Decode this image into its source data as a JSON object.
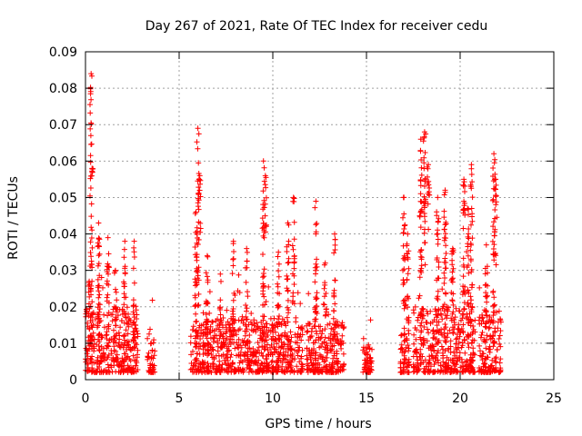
{
  "chart_data": {
    "type": "scatter",
    "title": "Day 267 of 2021, Rate Of TEC Index for receiver cedu",
    "xlabel": "GPS time / hours",
    "ylabel": "ROTI / TECUs",
    "xlim": [
      0,
      25
    ],
    "ylim": [
      0,
      0.09
    ],
    "x_ticks": [
      0,
      5,
      10,
      15,
      20,
      25
    ],
    "x_tick_labels": [
      "0",
      "5",
      "10",
      "15",
      "20",
      "25"
    ],
    "y_ticks": [
      0,
      0.01,
      0.02,
      0.03,
      0.04,
      0.05,
      0.06,
      0.07,
      0.08,
      0.09
    ],
    "y_tick_labels": [
      "0",
      "0.01",
      "0.02",
      "0.03",
      "0.04",
      "0.05",
      "0.06",
      "0.07",
      "0.08",
      "0.09"
    ],
    "grid": true,
    "marker": "+",
    "marker_color": "#ff0000",
    "series": [
      {
        "name": "ROTI",
        "segments": [
          {
            "start": 0.0,
            "end": 2.8,
            "base_max": 0.018
          },
          {
            "start": 3.3,
            "end": 3.7,
            "base_max": 0.012
          },
          {
            "start": 5.6,
            "end": 11.6,
            "base_max": 0.015
          },
          {
            "start": 11.8,
            "end": 13.8,
            "base_max": 0.014
          },
          {
            "start": 14.8,
            "end": 15.3,
            "base_max": 0.008
          },
          {
            "start": 16.8,
            "end": 17.3,
            "base_max": 0.012
          },
          {
            "start": 17.5,
            "end": 20.8,
            "base_max": 0.018
          },
          {
            "start": 21.0,
            "end": 22.2,
            "base_max": 0.016
          }
        ],
        "columns": [
          {
            "x": 0.2,
            "lo": 0.008,
            "hi": 0.027
          },
          {
            "x": 0.3,
            "lo": 0.005,
            "hi": 0.084
          },
          {
            "x": 0.35,
            "lo": 0.055,
            "hi": 0.058
          },
          {
            "x": 0.7,
            "lo": 0.01,
            "hi": 0.043
          },
          {
            "x": 1.2,
            "lo": 0.01,
            "hi": 0.039
          },
          {
            "x": 1.6,
            "lo": 0.008,
            "hi": 0.03
          },
          {
            "x": 2.1,
            "lo": 0.01,
            "hi": 0.038
          },
          {
            "x": 2.6,
            "lo": 0.008,
            "hi": 0.038
          },
          {
            "x": 5.9,
            "lo": 0.01,
            "hi": 0.046
          },
          {
            "x": 6.0,
            "lo": 0.02,
            "hi": 0.069
          },
          {
            "x": 6.1,
            "lo": 0.04,
            "hi": 0.056
          },
          {
            "x": 6.5,
            "lo": 0.008,
            "hi": 0.034
          },
          {
            "x": 7.2,
            "lo": 0.008,
            "hi": 0.029
          },
          {
            "x": 7.9,
            "lo": 0.01,
            "hi": 0.038
          },
          {
            "x": 8.6,
            "lo": 0.01,
            "hi": 0.036
          },
          {
            "x": 9.5,
            "lo": 0.01,
            "hi": 0.06
          },
          {
            "x": 9.6,
            "lo": 0.04,
            "hi": 0.056
          },
          {
            "x": 10.3,
            "lo": 0.01,
            "hi": 0.035
          },
          {
            "x": 10.8,
            "lo": 0.01,
            "hi": 0.043
          },
          {
            "x": 11.1,
            "lo": 0.02,
            "hi": 0.05
          },
          {
            "x": 12.3,
            "lo": 0.01,
            "hi": 0.049
          },
          {
            "x": 12.8,
            "lo": 0.01,
            "hi": 0.032
          },
          {
            "x": 13.3,
            "lo": 0.01,
            "hi": 0.04
          },
          {
            "x": 17.0,
            "lo": 0.01,
            "hi": 0.05
          },
          {
            "x": 17.2,
            "lo": 0.01,
            "hi": 0.04
          },
          {
            "x": 17.9,
            "lo": 0.01,
            "hi": 0.066
          },
          {
            "x": 18.1,
            "lo": 0.03,
            "hi": 0.068
          },
          {
            "x": 18.3,
            "lo": 0.04,
            "hi": 0.059
          },
          {
            "x": 18.8,
            "lo": 0.01,
            "hi": 0.05
          },
          {
            "x": 19.2,
            "lo": 0.01,
            "hi": 0.052
          },
          {
            "x": 19.6,
            "lo": 0.01,
            "hi": 0.036
          },
          {
            "x": 20.2,
            "lo": 0.01,
            "hi": 0.055
          },
          {
            "x": 20.4,
            "lo": 0.01,
            "hi": 0.047
          },
          {
            "x": 20.6,
            "lo": 0.01,
            "hi": 0.059
          },
          {
            "x": 21.4,
            "lo": 0.01,
            "hi": 0.037
          },
          {
            "x": 21.8,
            "lo": 0.01,
            "hi": 0.062
          },
          {
            "x": 21.9,
            "lo": 0.03,
            "hi": 0.055
          }
        ]
      }
    ]
  }
}
